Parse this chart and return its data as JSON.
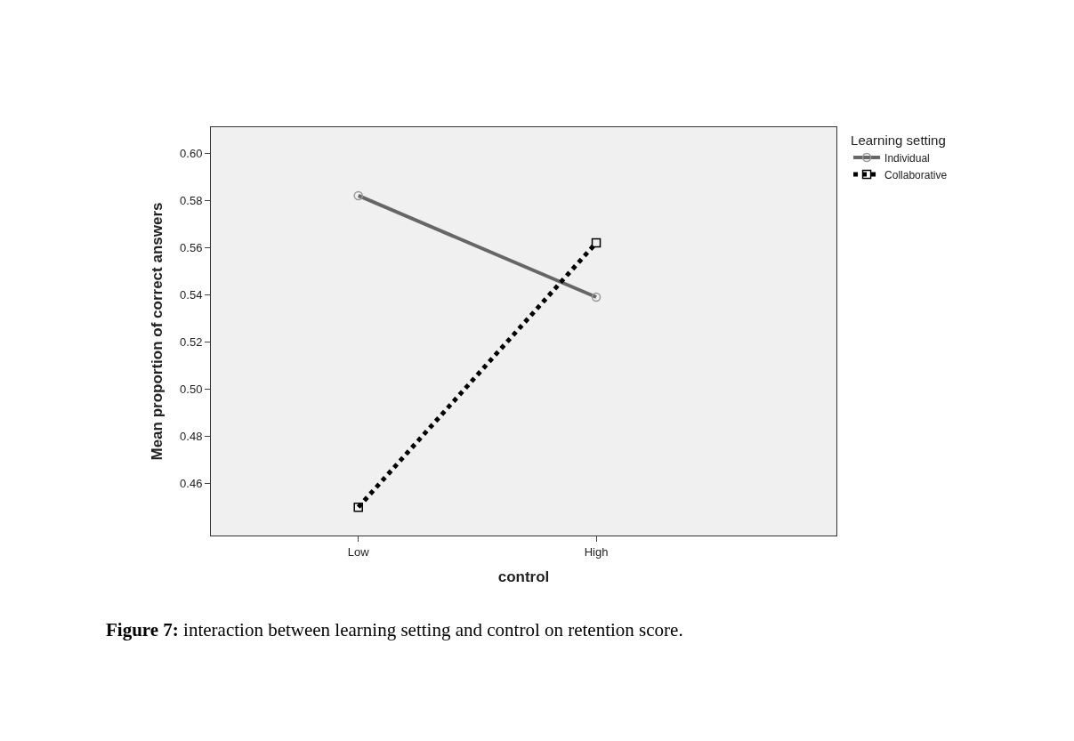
{
  "chart_data": {
    "type": "line",
    "xlabel": "control",
    "ylabel": "Mean proportion of correct answers",
    "legend_title": "Learning setting",
    "categories": [
      "Low",
      "High"
    ],
    "series": [
      {
        "name": "Individual",
        "color": "#666666",
        "values": [
          0.582,
          0.539
        ],
        "marker": "circle",
        "line_style": "solid"
      },
      {
        "name": "Collaborative",
        "color": "#000000",
        "values": [
          0.45,
          0.562
        ],
        "marker": "square",
        "line_style": "dotted"
      }
    ],
    "ylim": [
      0.438,
      0.611
    ],
    "yticks": [
      0.46,
      0.48,
      {
        "value": 0.5,
        "label": "0.50"
      },
      0.52,
      0.54,
      0.56,
      0.58,
      {
        "value": 0.6,
        "label": "0.60"
      }
    ],
    "grid": false,
    "legend": "top right",
    "annotations": [
      "Figure 7: interaction between learning setting and control on retention score."
    ]
  }
}
